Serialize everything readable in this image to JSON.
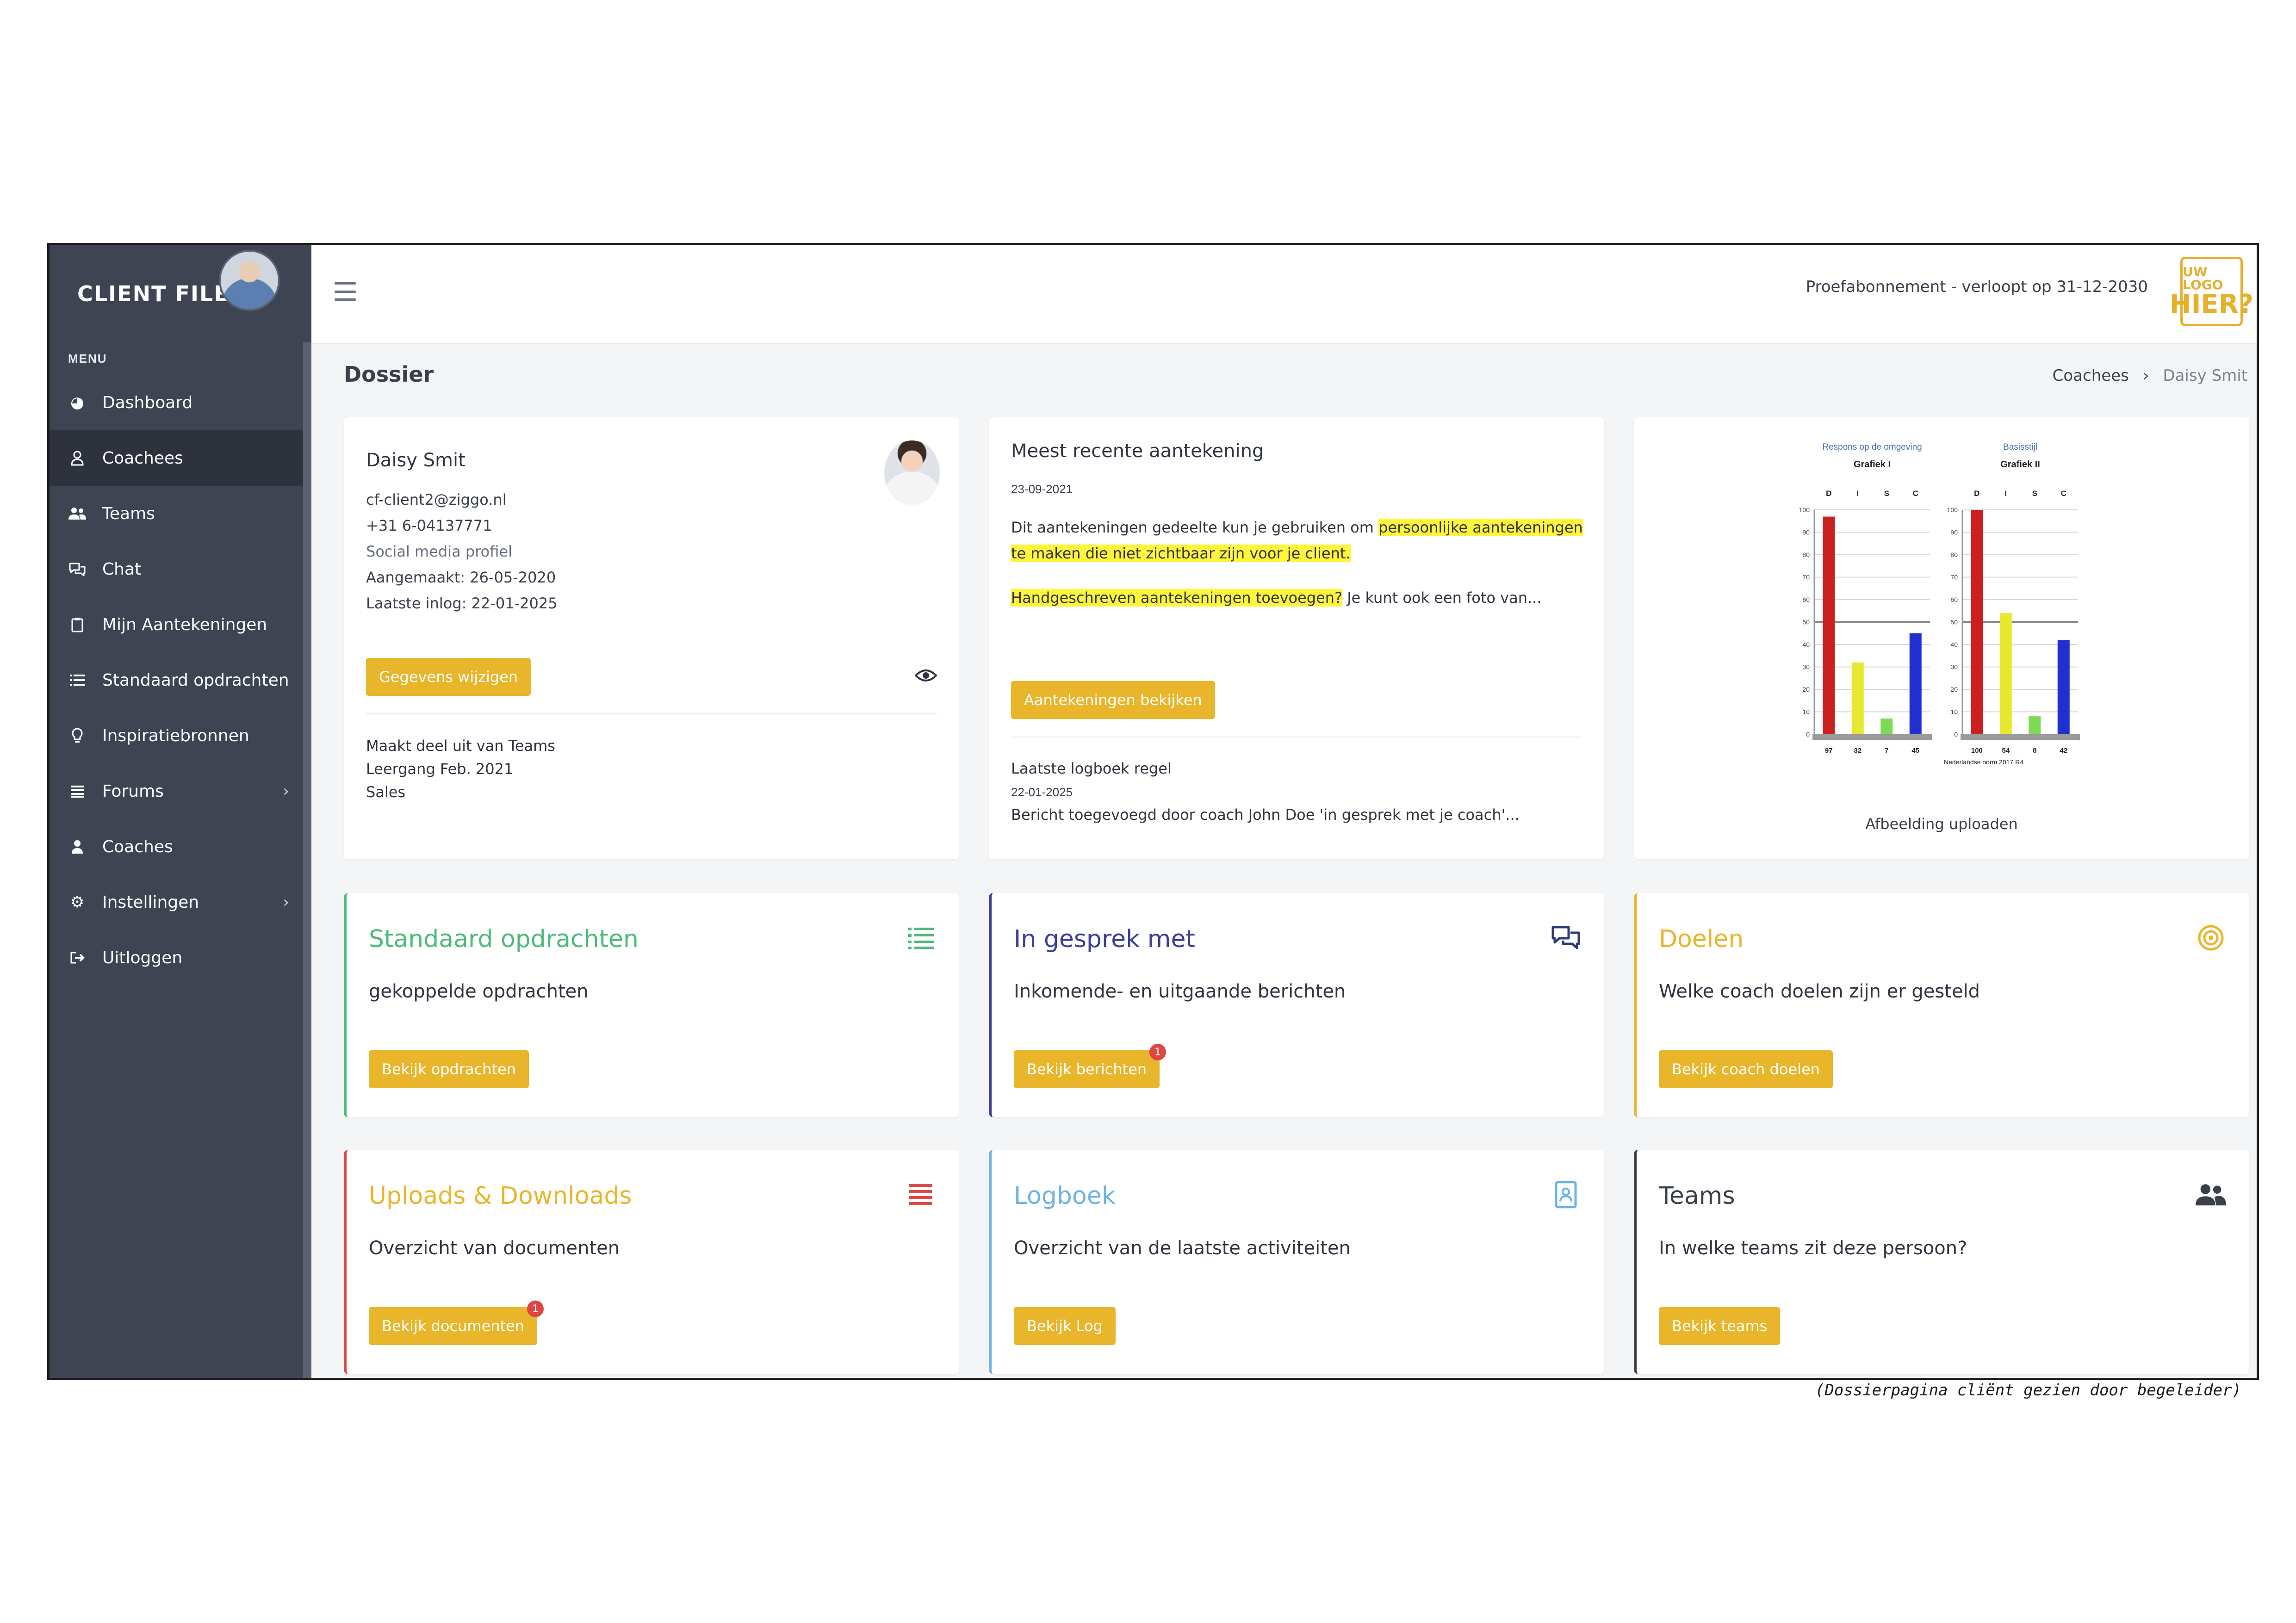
{
  "sidebar": {
    "brand": "CLIENT FILES",
    "menu_label": "MENU",
    "items": [
      {
        "label": "Dashboard",
        "icon": "dashboard-icon"
      },
      {
        "label": "Coachees",
        "icon": "user-icon"
      },
      {
        "label": "Teams",
        "icon": "users-icon"
      },
      {
        "label": "Chat",
        "icon": "chat-icon"
      },
      {
        "label": "Mijn Aantekeningen",
        "icon": "clipboard-icon"
      },
      {
        "label": "Standaard opdrachten",
        "icon": "list-icon"
      },
      {
        "label": "Inspiratiebronnen",
        "icon": "lightbulb-icon"
      },
      {
        "label": "Forums",
        "icon": "menu-icon"
      },
      {
        "label": "Coaches",
        "icon": "user-icon"
      },
      {
        "label": "Instellingen",
        "icon": "gear-icon"
      },
      {
        "label": "Uitloggen",
        "icon": "logout-icon"
      }
    ]
  },
  "topbar": {
    "subscription": "Proefabonnement - verloopt op 31-12-2030",
    "logo_line1": "UW LOGO",
    "logo_line2": "HIER?"
  },
  "page": {
    "title": "Dossier",
    "breadcrumb_parent": "Coachees",
    "breadcrumb_current": "Daisy Smit"
  },
  "profile": {
    "name": "Daisy Smit",
    "email": "cf-client2@ziggo.nl",
    "phone": "+31 6-04137771",
    "social": "Social media profiel",
    "created": "Aangemaakt: 26-05-2020",
    "last_login": "Laatste inlog: 22-01-2025",
    "edit_button": "Gegevens wijzigen",
    "teams_heading": "Maakt deel uit van Teams",
    "teams": [
      "Leergang Feb. 2021",
      "Sales"
    ]
  },
  "note": {
    "title": "Meest recente aantekening",
    "date": "23-09-2021",
    "text_1": "Dit aantekeningen gedeelte kun je gebruiken om ",
    "text_1_hl": "persoonlijke aantekeningen te maken die niet zichtbaar zijn voor je client.",
    "text_2_hl": "Handgeschreven aantekeningen toevoegen?",
    "text_2": " Je kunt ook een foto van...",
    "button": "Aantekeningen bekijken",
    "log_title": "Laatste logboek regel",
    "log_date": "22-01-2025",
    "log_text": "Bericht toegevoegd door coach John Doe 'in gesprek met je coach'..."
  },
  "image_card": {
    "upload_label": "Afbeelding uploaden"
  },
  "chart_data": [
    {
      "type": "bar",
      "title": "Grafiek I",
      "subtitle": "Respons op de omgeving",
      "categories": [
        "D",
        "I",
        "S",
        "C"
      ],
      "values": [
        97,
        32,
        7,
        45
      ],
      "ylim": [
        0,
        100
      ],
      "yticks": [
        0,
        10,
        20,
        30,
        40,
        50,
        60,
        70,
        80,
        90,
        100
      ],
      "colors": [
        "#cc1f1f",
        "#e8e830",
        "#7ed957",
        "#1f2fd0"
      ],
      "reference_line": 50
    },
    {
      "type": "bar",
      "title": "Grafiek II",
      "subtitle": "Basisstijl",
      "categories": [
        "D",
        "I",
        "S",
        "C"
      ],
      "values": [
        100,
        54,
        8,
        42
      ],
      "ylim": [
        0,
        100
      ],
      "yticks": [
        0,
        10,
        20,
        30,
        40,
        50,
        60,
        70,
        80,
        90,
        100
      ],
      "colors": [
        "#cc1f1f",
        "#e8e830",
        "#7ed957",
        "#1f2fd0"
      ],
      "reference_line": 50,
      "footnote": "Nederlandse norm 2017 R4"
    }
  ],
  "features": [
    {
      "title": "Standaard opdrachten",
      "subtitle": "gekoppelde opdrachten",
      "button": "Bekijk opdrachten",
      "color": "#4cba7a",
      "icon": "list-icon"
    },
    {
      "title": "In gesprek met",
      "subtitle": "Inkomende- en uitgaande berichten",
      "button": "Bekijk berichten",
      "badge": "1",
      "color": "#3b3f9a",
      "icon": "chat-icon"
    },
    {
      "title": "Doelen",
      "subtitle": "Welke coach doelen zijn er gesteld",
      "button": "Bekijk coach doelen",
      "color": "#e9b52b",
      "icon": "target-icon"
    },
    {
      "title": "Uploads & Downloads",
      "subtitle": "Overzicht van documenten",
      "button": "Bekijk documenten",
      "badge": "1",
      "color": "#e9b52b",
      "border": "#e04545",
      "icon": "bars-icon"
    },
    {
      "title": "Logboek",
      "subtitle": "Overzicht van de laatste activiteiten",
      "button": "Bekijk Log",
      "color": "#6db3e8",
      "icon": "contact-book-icon"
    },
    {
      "title": "Teams",
      "subtitle": "In welke teams zit deze persoon?",
      "button": "Bekijk teams",
      "color": "#3a3f4b",
      "icon": "users-icon"
    }
  ],
  "caption": "(Dossierpagina cliënt gezien door begeleider)"
}
